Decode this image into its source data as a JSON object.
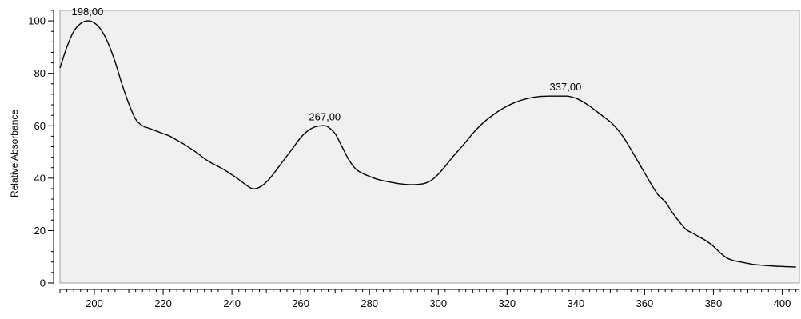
{
  "chart_data": {
    "type": "line",
    "title": "",
    "xlabel": "",
    "ylabel": "Relative Absorbance",
    "xlim": [
      190,
      405
    ],
    "ylim": [
      0,
      104
    ],
    "x_ticks": [
      200,
      220,
      240,
      260,
      280,
      300,
      320,
      340,
      360,
      380,
      400
    ],
    "y_ticks": [
      0,
      20,
      40,
      60,
      80,
      100
    ],
    "grid": false,
    "legend": "none",
    "colors": {
      "plot_background": "#f0f0f0",
      "line": "#000000",
      "frame": "#a0a0a0"
    },
    "series": [
      {
        "x": [
          190,
          192,
          194,
          196,
          198,
          200,
          202,
          204,
          206,
          208,
          210,
          212,
          214,
          216,
          218,
          220,
          222,
          224,
          226,
          228,
          230,
          232,
          234,
          236,
          238,
          240,
          242,
          244,
          246,
          248,
          250,
          252,
          254,
          256,
          258,
          260,
          262,
          264,
          266,
          267,
          268,
          270,
          272,
          274,
          276,
          278,
          280,
          282,
          284,
          286,
          288,
          290,
          292,
          294,
          296,
          298,
          300,
          302,
          304,
          306,
          308,
          310,
          312,
          314,
          316,
          318,
          320,
          322,
          324,
          326,
          328,
          330,
          332,
          334,
          336,
          337,
          338,
          340,
          342,
          344,
          346,
          348,
          350,
          352,
          354,
          356,
          358,
          360,
          362,
          364,
          366,
          368,
          370,
          372,
          374,
          376,
          378,
          380,
          382,
          384,
          386,
          388,
          390,
          392,
          394,
          396,
          398,
          400,
          402,
          404
        ],
        "y": [
          82,
          90,
          96,
          99,
          100,
          99.2,
          96.5,
          91.5,
          84.5,
          76,
          68.5,
          62.5,
          60,
          59,
          58,
          57,
          56,
          54.5,
          53,
          51.3,
          49.5,
          47.5,
          45.8,
          44.5,
          43,
          41.3,
          39.5,
          37.5,
          36,
          36.5,
          38.5,
          41.5,
          45,
          48.5,
          52,
          55.5,
          58,
          59.5,
          60,
          60,
          59.5,
          57,
          52,
          47,
          43.5,
          41.8,
          40.7,
          39.7,
          39,
          38.5,
          38,
          37.7,
          37.5,
          37.6,
          38,
          39.2,
          41.5,
          44.5,
          47.8,
          50.8,
          53.8,
          57,
          59.8,
          62.2,
          64.2,
          66,
          67.5,
          68.7,
          69.7,
          70.4,
          70.9,
          71.2,
          71.3,
          71.3,
          71.3,
          71.3,
          71.2,
          70.5,
          69.2,
          67.5,
          65.5,
          63.5,
          61.5,
          58.8,
          55.3,
          51,
          46.5,
          42,
          37.5,
          33.5,
          31,
          27,
          23.5,
          20.5,
          19,
          17.5,
          16,
          14,
          11.5,
          9.5,
          8.5,
          8,
          7.5,
          7,
          6.8,
          6.6,
          6.4,
          6.3,
          6.2,
          6.1
        ]
      }
    ],
    "annotations": [
      {
        "text": "198,00",
        "x": 198,
        "y": 100
      },
      {
        "text": "267,00",
        "x": 267,
        "y": 60
      },
      {
        "text": "337,00",
        "x": 337,
        "y": 71.3
      }
    ]
  }
}
